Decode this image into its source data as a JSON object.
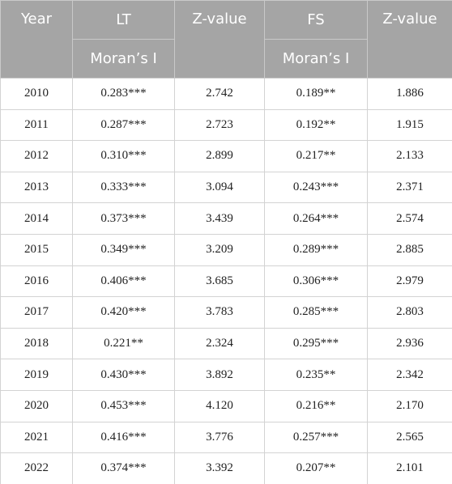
{
  "table": {
    "header": {
      "year": "Year",
      "lt": "LT",
      "lt_sub": "Moran’s I",
      "z1": "Z-value",
      "fs": "FS",
      "fs_sub": "Moran’s I",
      "z2": "Z-value"
    },
    "rows": [
      [
        "2010",
        "0.283***",
        "2.742",
        "0.189**",
        "1.886"
      ],
      [
        "2011",
        "0.287***",
        "2.723",
        "0.192**",
        "1.915"
      ],
      [
        "2012",
        "0.310***",
        "2.899",
        "0.217**",
        "2.133"
      ],
      [
        "2013",
        "0.333***",
        "3.094",
        "0.243***",
        "2.371"
      ],
      [
        "2014",
        "0.373***",
        "3.439",
        "0.264***",
        "2.574"
      ],
      [
        "2015",
        "0.349***",
        "3.209",
        "0.289***",
        "2.885"
      ],
      [
        "2016",
        "0.406***",
        "3.685",
        "0.306***",
        "2.979"
      ],
      [
        "2017",
        "0.420***",
        "3.783",
        "0.285***",
        "2.803"
      ],
      [
        "2018",
        "0.221**",
        "2.324",
        "0.295***",
        "2.936"
      ],
      [
        "2019",
        "0.430***",
        "3.892",
        "0.235**",
        "2.342"
      ],
      [
        "2020",
        "0.453***",
        "4.120",
        "0.216**",
        "2.170"
      ],
      [
        "2021",
        "0.416***",
        "3.776",
        "0.257***",
        "2.565"
      ],
      [
        "2022",
        "0.374***",
        "3.392",
        "0.207**",
        "2.101"
      ]
    ]
  }
}
